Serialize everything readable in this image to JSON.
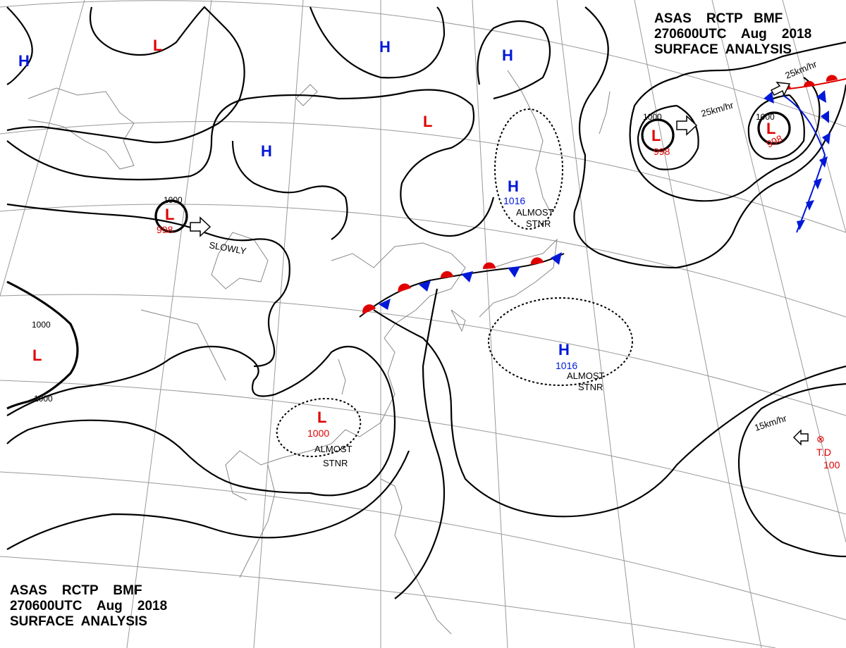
{
  "header_top": {
    "line1": "ASAS    RCTP   BMF",
    "line2": "270600UTC    Aug    2018",
    "line3": "SURFACE  ANALYSIS"
  },
  "header_bottom": {
    "line1": "ASAS    RCTP    BMF",
    "line2": "270600UTC    Aug    2018",
    "line3": "SURFACE  ANALYSIS"
  },
  "pressure_centers": [
    {
      "type": "L",
      "label": "L",
      "value": "998"
    },
    {
      "type": "L",
      "label": "L",
      "value": "998"
    },
    {
      "type": "L",
      "label": "L",
      "value": "998"
    },
    {
      "type": "L",
      "label": "L",
      "value": "1000"
    },
    {
      "type": "H",
      "label": "H",
      "value": "1016"
    },
    {
      "type": "H",
      "label": "H",
      "value": "1016"
    }
  ],
  "center_labels": {
    "low": "L",
    "high": "H"
  },
  "center_values": {
    "v998": "998",
    "v1000": "1000",
    "v1016": "1016"
  },
  "isobar_labels": {
    "v1000": "1000"
  },
  "notes": {
    "slowly": "SLOWLY",
    "almost": "ALMOST",
    "stnr": "STNR",
    "speed_25": "25km/hr",
    "speed_15": "15km/hr",
    "td": "T.D",
    "td_value": "100",
    "storm_symbol": "⊗"
  },
  "colors": {
    "low": "#e00000",
    "high": "#0018d8",
    "isobar": "#000000",
    "grid": "#999999",
    "coast": "#888888",
    "warm_front": "#e00000",
    "cold_front": "#0018d8"
  }
}
